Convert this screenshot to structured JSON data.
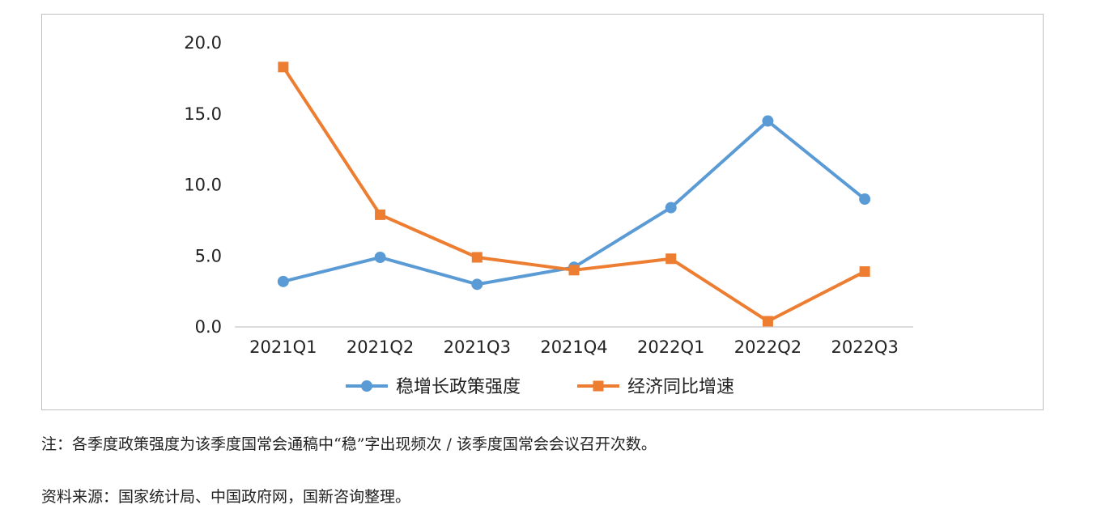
{
  "chart_data": {
    "type": "line",
    "categories": [
      "2021Q1",
      "2021Q2",
      "2021Q3",
      "2021Q4",
      "2022Q1",
      "2022Q2",
      "2022Q3"
    ],
    "series": [
      {
        "name": "稳增长政策强度",
        "values": [
          3.2,
          4.9,
          3.0,
          4.2,
          8.4,
          14.5,
          9.0
        ],
        "color": "#5b9bd5",
        "marker": "circle"
      },
      {
        "name": "经济同比增速",
        "values": [
          18.3,
          7.9,
          4.9,
          4.0,
          4.8,
          0.4,
          3.9
        ],
        "color": "#ed7d31",
        "marker": "square"
      }
    ],
    "y_ticks": [
      "0.0",
      "5.0",
      "10.0",
      "15.0",
      "20.0"
    ],
    "ylim": [
      0,
      20
    ],
    "grid": false,
    "legend": "bottom"
  },
  "notes": {
    "note": "注：各季度政策强度为该季度国常会通稿中“稳”字出现频次 / 该季度国常会会议召开次数。",
    "source": "资料来源：国家统计局、中国政府网，国新咨询整理。"
  }
}
